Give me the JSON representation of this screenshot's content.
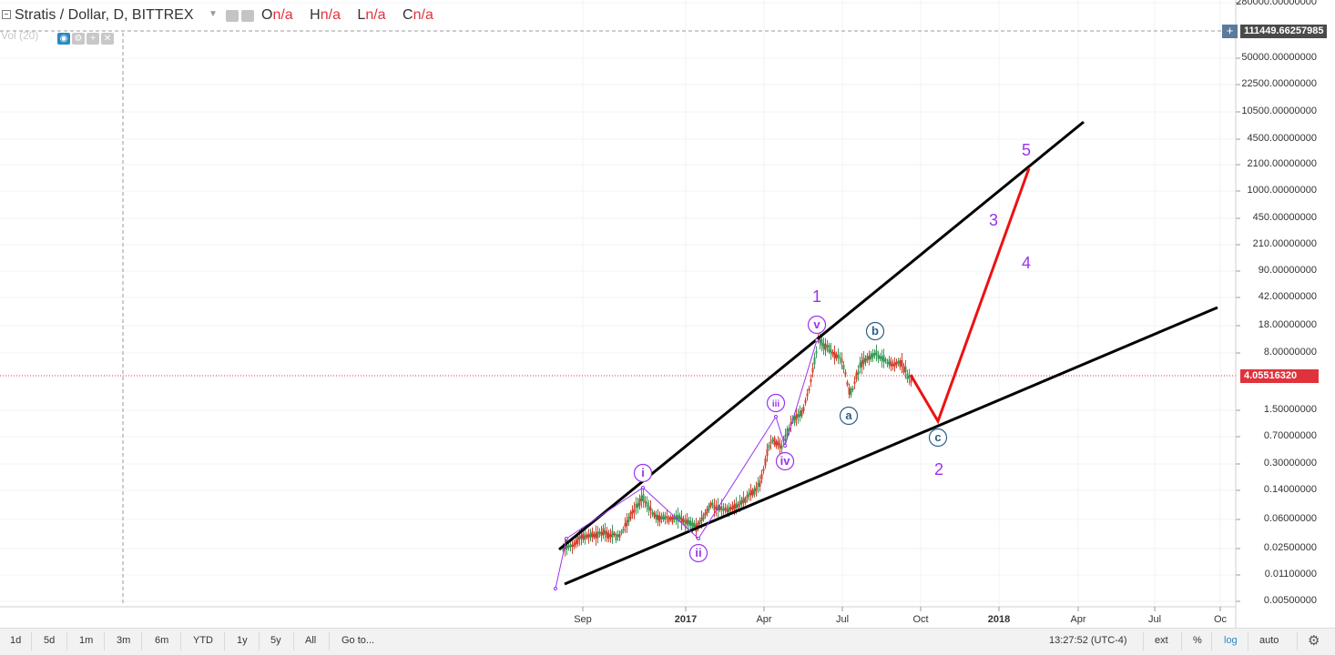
{
  "header": {
    "symbol_title": "Stratis / Dollar, D, BITTREX",
    "ohlc": [
      {
        "key": "O",
        "value": "n/a"
      },
      {
        "key": "H",
        "value": "n/a"
      },
      {
        "key": "L",
        "value": "n/a"
      },
      {
        "key": "C",
        "value": "n/a"
      }
    ],
    "volume_label": "Vol (20)"
  },
  "price_axis": {
    "labels": [
      "280000.00000000",
      "111449.66257985",
      "50000.00000000",
      "22500.00000000",
      "10500.00000000",
      "4500.00000000",
      "2100.00000000",
      "1000.00000000",
      "450.00000000",
      "210.00000000",
      "90.00000000",
      "42.00000000",
      "18.00000000",
      "8.00000000",
      "4.05516320",
      "1.50000000",
      "0.70000000",
      "0.30000000",
      "0.14000000",
      "0.06000000",
      "0.02500000",
      "0.01100000",
      "0.00500000"
    ],
    "crosshair_price": "111449.66257985",
    "last_price": "4.05516320"
  },
  "time_axis": {
    "labels": [
      {
        "text": "Sep",
        "bold": false
      },
      {
        "text": "2017",
        "bold": true
      },
      {
        "text": "Apr",
        "bold": false
      },
      {
        "text": "Jul",
        "bold": false
      },
      {
        "text": "Oct",
        "bold": false
      },
      {
        "text": "2018",
        "bold": true
      },
      {
        "text": "Apr",
        "bold": false
      },
      {
        "text": "Jul",
        "bold": false
      },
      {
        "text": "Oc",
        "bold": false
      }
    ]
  },
  "chart_data": {
    "type": "candlestick",
    "title": "Stratis / Dollar, D, BITTREX",
    "y_scale": "log",
    "last_price": 4.0551632,
    "annotations": {
      "circled_labels": [
        "i",
        "ii",
        "iii",
        "iv",
        "v",
        "a",
        "b",
        "c"
      ],
      "wave_labels": [
        "1",
        "2",
        "3",
        "4",
        "5"
      ]
    },
    "lines": [
      {
        "name": "upper trendline",
        "color": "#000000"
      },
      {
        "name": "lower trendline",
        "color": "#000000"
      },
      {
        "name": "wave path",
        "color": "#9933ee"
      },
      {
        "name": "projection",
        "color": "#ee1111"
      }
    ],
    "colors": {
      "up": "#3a9a5a",
      "down": "#d4402f",
      "wave": "#9933ee",
      "abc": "#2a5f86",
      "last": "#e0323c"
    }
  },
  "toolbar": {
    "ranges": [
      "1d",
      "5d",
      "1m",
      "3m",
      "6m",
      "YTD",
      "1y",
      "5y",
      "All"
    ],
    "goto": "Go to...",
    "time": "13:27:52 (UTC-4)",
    "ext": "ext",
    "percent": "%",
    "log": "log",
    "auto": "auto"
  }
}
